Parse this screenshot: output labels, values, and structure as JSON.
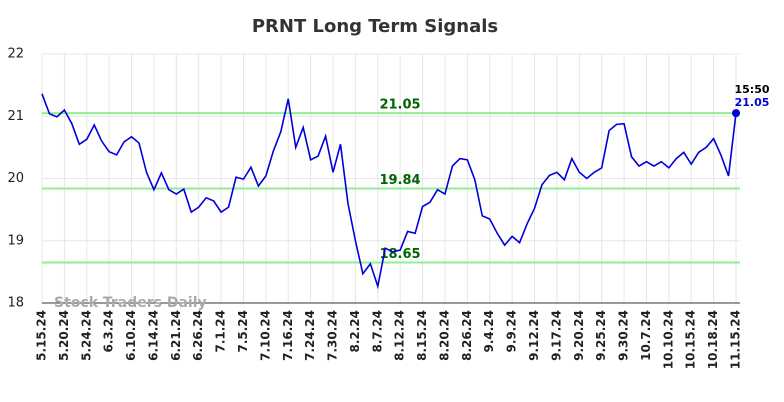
{
  "chart_data": {
    "type": "line",
    "title": "PRNT Long Term Signals",
    "watermark": "Stock Traders Daily",
    "x": [
      "5.15.24",
      null,
      null,
      "5.20.24",
      null,
      null,
      "5.24.24",
      null,
      null,
      "6.3.24",
      null,
      null,
      "6.10.24",
      null,
      null,
      "6.14.24",
      null,
      null,
      "6.21.24",
      null,
      null,
      "6.26.24",
      null,
      null,
      "7.1.24",
      null,
      null,
      "7.5.24",
      null,
      null,
      "7.10.24",
      null,
      null,
      "7.16.24",
      null,
      null,
      "7.24.24",
      null,
      null,
      "7.30.24",
      null,
      null,
      "8.2.24",
      null,
      null,
      "8.7.24",
      null,
      null,
      "8.12.24",
      null,
      null,
      "8.15.24",
      null,
      null,
      "8.20.24",
      null,
      null,
      "8.26.24",
      null,
      null,
      "9.4.24",
      null,
      null,
      "9.9.24",
      null,
      null,
      "9.12.24",
      null,
      null,
      "9.17.24",
      null,
      null,
      "9.20.24",
      null,
      null,
      "9.25.24",
      null,
      null,
      "9.30.24",
      null,
      null,
      "10.7.24",
      null,
      null,
      "10.10.24",
      null,
      null,
      "10.15.24",
      null,
      null,
      "10.18.24",
      null,
      null,
      "11.15.24"
    ],
    "series": [
      {
        "name": "PRNT",
        "color": "#0000dd",
        "values": [
          21.36,
          21.04,
          20.99,
          21.1,
          20.88,
          20.55,
          20.63,
          20.86,
          20.6,
          20.43,
          20.38,
          20.59,
          20.67,
          20.57,
          20.1,
          19.82,
          20.09,
          19.82,
          19.75,
          19.83,
          19.46,
          19.54,
          19.69,
          19.64,
          19.46,
          19.54,
          20.02,
          19.99,
          20.18,
          19.88,
          20.04,
          20.44,
          20.75,
          21.28,
          20.5,
          20.82,
          20.3,
          20.36,
          20.68,
          20.1,
          20.55,
          19.6,
          19.0,
          18.47,
          18.63,
          18.27,
          18.88,
          18.82,
          18.85,
          19.15,
          19.12,
          19.55,
          19.62,
          19.82,
          19.75,
          20.2,
          20.32,
          20.3,
          19.98,
          19.4,
          19.35,
          19.12,
          18.93,
          19.07,
          18.97,
          19.27,
          19.52,
          19.9,
          20.05,
          20.1,
          19.98,
          20.32,
          20.1,
          20.0,
          20.1,
          20.17,
          20.77,
          20.87,
          20.88,
          20.35,
          20.2,
          20.27,
          20.2,
          20.27,
          20.17,
          20.32,
          20.42,
          20.23,
          20.42,
          20.5,
          20.64,
          20.37,
          20.04,
          21.05
        ]
      }
    ],
    "hlines": [
      21.05,
      19.84,
      18.65
    ],
    "hline_color": "#90ee90",
    "last_time": "15:50",
    "ylim": [
      18,
      22
    ],
    "yticks": [
      18,
      19,
      20,
      21,
      22
    ],
    "grid": true
  }
}
